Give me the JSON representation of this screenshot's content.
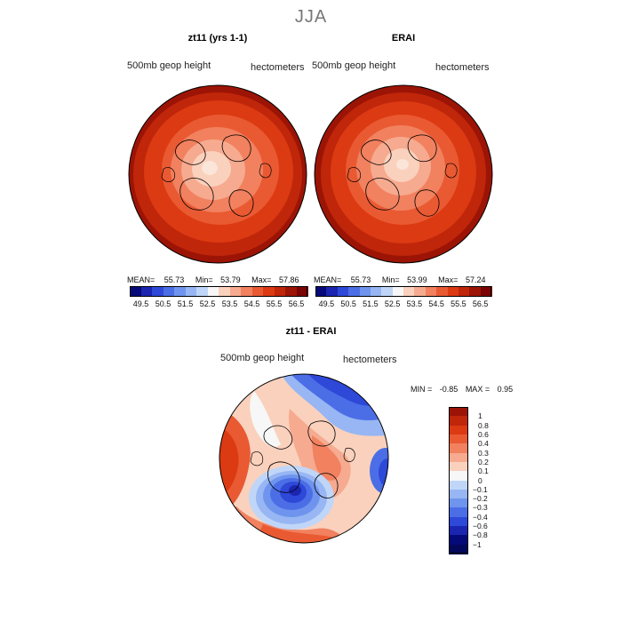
{
  "season": "JJA",
  "panels": [
    {
      "title": "zt11 (yrs 1-1)",
      "field_label": "500mb geop height",
      "units_label": "hectometers",
      "stats": {
        "mean_label": "MEAN=",
        "mean": "55.73",
        "min_label": "Min=",
        "min": "53.79",
        "max_label": "Max=",
        "max": "57.86"
      }
    },
    {
      "title": "ERAI",
      "field_label": "500mb geop height",
      "units_label": "hectometers",
      "stats": {
        "mean_label": "MEAN=",
        "mean": "55.73",
        "min_label": "Min=",
        "min": "53.99",
        "max_label": "Max=",
        "max": "57.24"
      }
    },
    {
      "title": "zt11 - ERAI",
      "field_label": "500mb geop height",
      "units_label": "hectometers",
      "stats": {
        "min_label": "MIN =",
        "min": "-0.85",
        "max_label": "MAX =",
        "max": "0.95"
      }
    }
  ],
  "colorbar_abs": {
    "ticks": [
      "49.5",
      "50.5",
      "51.5",
      "52.5",
      "53.5",
      "54.5",
      "55.5",
      "56.5"
    ],
    "colors": [
      "#050a78",
      "#1a25b0",
      "#2e48d8",
      "#4b6ee6",
      "#6f94ee",
      "#97b6f3",
      "#c0d6f8",
      "#f7f7f7",
      "#fad1bd",
      "#f6aa8f",
      "#f1815f",
      "#e95a33",
      "#dc3a12",
      "#c0260a",
      "#9c1405",
      "#7a0303"
    ]
  },
  "colorbar_diff": {
    "ticks": [
      "1",
      "0.8",
      "0.6",
      "0.4",
      "0.3",
      "0.2",
      "0.1",
      "0",
      "-0.1",
      "-0.2",
      "-0.3",
      "-0.4",
      "-0.6",
      "-0.8",
      "-1"
    ],
    "colors": [
      "#9c1405",
      "#c0260a",
      "#dc3a12",
      "#e95a33",
      "#f1815f",
      "#f6aa8f",
      "#fad1bd",
      "#f7f7f7",
      "#c0d6f8",
      "#97b6f3",
      "#6f94ee",
      "#4b6ee6",
      "#2e48d8",
      "#1a25b0",
      "#050a78",
      "#03085a"
    ]
  }
}
